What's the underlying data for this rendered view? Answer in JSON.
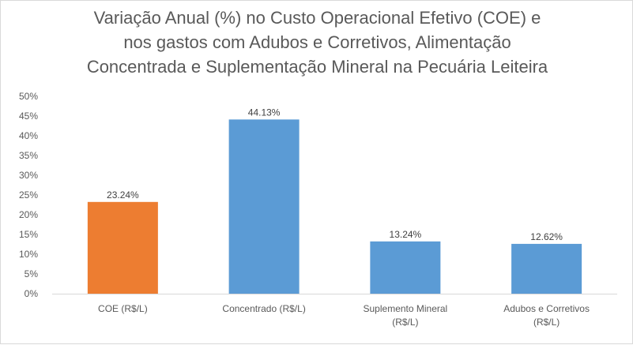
{
  "chart_data": {
    "type": "bar",
    "title_lines": [
      "Variação Anual (%) no Custo Operacional Efetivo (COE) e",
      "nos gastos com Adubos e Corretivos, Alimentação",
      "Concentrada e Suplementação Mineral na Pecuária Leiteira"
    ],
    "categories": [
      [
        "COE (R$/L)"
      ],
      [
        "Concentrado (R$/L)"
      ],
      [
        "Suplemento Mineral",
        "(R$/L)"
      ],
      [
        "Adubos e Corretivos",
        "(R$/L)"
      ]
    ],
    "values": [
      23.24,
      44.13,
      13.24,
      12.62
    ],
    "data_labels": [
      "23.24%",
      "44.13%",
      "13.24%",
      "12.62%"
    ],
    "bar_colors": [
      "#ED7D31",
      "#5B9BD5",
      "#5B9BD5",
      "#5B9BD5"
    ],
    "ylim": [
      0,
      50
    ],
    "yticks": [
      0,
      5,
      10,
      15,
      20,
      25,
      30,
      35,
      40,
      45,
      50
    ],
    "ytick_labels": [
      "0%",
      "5%",
      "10%",
      "15%",
      "20%",
      "25%",
      "30%",
      "35%",
      "40%",
      "45%",
      "50%"
    ],
    "grid": false,
    "legend": "none"
  }
}
